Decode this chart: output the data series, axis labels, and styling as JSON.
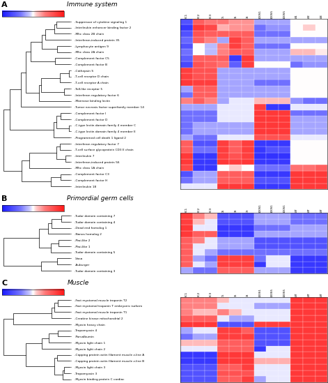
{
  "col_labels_A": [
    "BC1",
    "BC2",
    "BC3",
    "C5",
    "C6",
    "C8",
    "100S1",
    "100S5",
    "100S5",
    "W1",
    "W2",
    "W3"
  ],
  "col_labels_B": [
    "BC1",
    "BC2",
    "BC3",
    "C6",
    "C8",
    "C9",
    "100S1",
    "100S1",
    "100S1",
    "WT",
    "WT",
    "WT"
  ],
  "col_labels_C": [
    "BC1",
    "BC2",
    "BC3",
    "C5",
    "C6",
    "C8",
    "100S1",
    "100S5",
    "100S5",
    "WT",
    "WT",
    "WT"
  ],
  "title_A": "Immune system",
  "title_B": "Primordial germ cells",
  "title_C": "Muscle",
  "label_A": "A",
  "label_B": "B",
  "label_C": "C",
  "scale_A": [
    0.0,
    4.0,
    8.0
  ],
  "scale_B": [
    0.0,
    2.5,
    5.0
  ],
  "scale_C": [
    0.0,
    1.5,
    3.0
  ],
  "genes_A": [
    "Mhc class 1A chain",
    "Interleukin enhancer binding factor 2",
    "Mhc class 2B chain",
    "Suppressor of cytokine signaling 1",
    "Complement factor B",
    "Complement factor C5",
    "Mhc class 2A chain",
    "Lymphocyte antigen 9",
    "Interferon-induced protein 35",
    "Mannose binding lectin",
    "Interferon regulatory factor 6",
    "Toll-like receptor 5",
    "T-cell surface glycoprotein CD3 E chain",
    "Interferon regulatory factor 7",
    "Interferon-induced protein 56",
    "Interleukin 7",
    "Complement factor D",
    "C-type lectin domain family 4 member E",
    "C-type lectin domain family 4 member C",
    "Complement factor I",
    "Tumor necrosis factor superfamily member 14",
    "T-cell receptor D chain",
    "Cathepsin S",
    "T-cell receptor A chain",
    "Programmed cell death 1 ligand 2",
    "Interleukin 18",
    "Complement factor H",
    "Complement factor C3"
  ],
  "genes_B": [
    "Dead end homolog 1",
    "Nanos homolog 2",
    "Tudor domain containing 4",
    "Tudor domain containing 7",
    "Tudor domain containing 5",
    "Piwi-like 1",
    "Piwi-like 2",
    "Auburger",
    "Vasa",
    "Tudor domain containing 3"
  ],
  "genes_C": [
    "Capping protein actin filament muscle z-line B",
    "Capping protein actin filament muscle z-line A",
    "Tropomyosin 3",
    "Myosin light chain 3",
    "Myosin binding protein C cardiac",
    "Parvalbumin",
    "Tropomyosin 4",
    "Myosin light chain 2",
    "Fast myotomal troponin T embryonic isoform",
    "Myosin light chain 1",
    "Fast myotomal muscle troponin T2",
    "Fast myotomal muscle troponin T1",
    "Creatine kinase mitochondrial 2",
    "Myosin heavy chain"
  ],
  "heatmap_A": [
    [
      0.85,
      0.1,
      0.1,
      0.5,
      0.55,
      0.5,
      0.28,
      0.28,
      0.28,
      0.72,
      0.72,
      0.78
    ],
    [
      0.1,
      0.9,
      0.85,
      0.6,
      0.65,
      0.65,
      0.28,
      0.35,
      0.35,
      0.5,
      0.55,
      0.5
    ],
    [
      0.18,
      0.82,
      0.78,
      0.78,
      0.78,
      0.78,
      0.28,
      0.28,
      0.28,
      0.5,
      0.5,
      0.5
    ],
    [
      0.18,
      0.78,
      0.7,
      0.7,
      0.65,
      0.65,
      0.38,
      0.38,
      0.38,
      0.5,
      0.5,
      0.5
    ],
    [
      0.15,
      0.82,
      0.78,
      0.72,
      0.22,
      0.88,
      0.5,
      0.5,
      0.5,
      0.28,
      0.35,
      0.35
    ],
    [
      0.22,
      0.78,
      0.78,
      0.78,
      0.1,
      0.9,
      0.38,
      0.38,
      0.38,
      0.38,
      0.38,
      0.38
    ],
    [
      0.28,
      0.5,
      0.42,
      0.68,
      0.78,
      0.78,
      0.38,
      0.38,
      0.38,
      0.58,
      0.58,
      0.52
    ],
    [
      0.18,
      0.5,
      0.42,
      0.68,
      0.88,
      0.78,
      0.28,
      0.28,
      0.28,
      0.5,
      0.5,
      0.5
    ],
    [
      0.25,
      0.78,
      0.68,
      0.38,
      0.88,
      0.78,
      0.38,
      0.38,
      0.38,
      0.38,
      0.38,
      0.38
    ],
    [
      0.68,
      0.78,
      0.68,
      0.38,
      0.48,
      0.48,
      0.58,
      0.58,
      0.58,
      0.35,
      0.28,
      0.28
    ],
    [
      0.28,
      0.78,
      0.78,
      0.38,
      0.38,
      0.38,
      0.38,
      0.38,
      0.38,
      0.5,
      0.5,
      0.5
    ],
    [
      0.38,
      0.78,
      0.78,
      0.38,
      0.38,
      0.38,
      0.38,
      0.38,
      0.38,
      0.5,
      0.5,
      0.5
    ],
    [
      0.78,
      0.28,
      0.28,
      0.88,
      0.78,
      0.88,
      0.1,
      0.18,
      0.18,
      0.5,
      0.5,
      0.5
    ],
    [
      0.78,
      0.18,
      0.18,
      0.88,
      0.78,
      0.88,
      0.1,
      0.1,
      0.1,
      0.5,
      0.5,
      0.5
    ],
    [
      0.9,
      0.1,
      0.1,
      0.9,
      0.88,
      0.9,
      0.1,
      0.1,
      0.1,
      0.5,
      0.5,
      0.5
    ],
    [
      0.9,
      0.1,
      0.1,
      0.88,
      0.82,
      0.88,
      0.08,
      0.08,
      0.08,
      0.5,
      0.5,
      0.5
    ],
    [
      0.28,
      0.28,
      0.28,
      0.48,
      0.48,
      0.48,
      0.9,
      0.9,
      0.9,
      0.38,
      0.38,
      0.38
    ],
    [
      0.28,
      0.38,
      0.38,
      0.38,
      0.38,
      0.38,
      0.9,
      0.9,
      0.9,
      0.38,
      0.38,
      0.38
    ],
    [
      0.28,
      0.38,
      0.38,
      0.38,
      0.38,
      0.38,
      0.9,
      0.9,
      0.9,
      0.38,
      0.38,
      0.38
    ],
    [
      0.28,
      0.28,
      0.28,
      0.48,
      0.48,
      0.48,
      0.9,
      0.9,
      0.9,
      0.28,
      0.28,
      0.28
    ],
    [
      0.38,
      0.38,
      0.38,
      0.48,
      0.48,
      0.48,
      0.88,
      0.1,
      0.1,
      0.48,
      0.48,
      0.48
    ],
    [
      0.88,
      0.82,
      0.82,
      0.38,
      0.38,
      0.38,
      0.38,
      0.38,
      0.38,
      0.5,
      0.5,
      0.5
    ],
    [
      0.88,
      0.82,
      0.82,
      0.38,
      0.38,
      0.38,
      0.38,
      0.38,
      0.38,
      0.5,
      0.5,
      0.5
    ],
    [
      0.9,
      0.88,
      0.88,
      0.38,
      0.38,
      0.38,
      0.28,
      0.28,
      0.28,
      0.5,
      0.5,
      0.5
    ],
    [
      0.38,
      0.28,
      0.28,
      0.48,
      0.48,
      0.48,
      0.82,
      0.82,
      0.82,
      0.48,
      0.48,
      0.48
    ],
    [
      0.48,
      0.48,
      0.48,
      0.9,
      0.9,
      0.9,
      0.1,
      0.1,
      0.1,
      0.9,
      0.9,
      0.9
    ],
    [
      0.28,
      0.38,
      0.38,
      0.78,
      0.78,
      0.78,
      0.18,
      0.18,
      0.18,
      0.9,
      0.9,
      0.9
    ],
    [
      0.18,
      0.38,
      0.38,
      0.78,
      0.78,
      0.78,
      0.1,
      0.1,
      0.1,
      0.9,
      0.9,
      0.9
    ]
  ],
  "heatmap_B": [
    [
      0.9,
      0.48,
      0.48,
      0.1,
      0.1,
      0.1,
      0.28,
      0.28,
      0.28,
      0.38,
      0.38,
      0.38
    ],
    [
      0.9,
      0.78,
      0.78,
      0.1,
      0.1,
      0.1,
      0.38,
      0.38,
      0.38,
      0.38,
      0.38,
      0.38
    ],
    [
      0.88,
      0.58,
      0.48,
      0.18,
      0.18,
      0.18,
      0.38,
      0.38,
      0.38,
      0.28,
      0.28,
      0.28
    ],
    [
      0.88,
      0.68,
      0.58,
      0.18,
      0.18,
      0.18,
      0.38,
      0.38,
      0.38,
      0.28,
      0.28,
      0.28
    ],
    [
      0.78,
      0.48,
      0.38,
      0.28,
      0.28,
      0.28,
      0.28,
      0.28,
      0.28,
      0.28,
      0.28,
      0.28
    ],
    [
      0.78,
      0.48,
      0.48,
      0.38,
      0.38,
      0.38,
      0.18,
      0.18,
      0.18,
      0.18,
      0.18,
      0.18
    ],
    [
      0.78,
      0.68,
      0.48,
      0.38,
      0.38,
      0.38,
      0.18,
      0.18,
      0.18,
      0.18,
      0.18,
      0.18
    ],
    [
      0.78,
      0.48,
      0.38,
      0.88,
      0.88,
      0.88,
      0.1,
      0.48,
      0.48,
      0.1,
      0.1,
      0.1
    ],
    [
      0.78,
      0.38,
      0.28,
      0.88,
      0.88,
      0.88,
      0.28,
      0.48,
      0.48,
      0.1,
      0.1,
      0.1
    ],
    [
      0.38,
      0.28,
      0.28,
      0.78,
      0.78,
      0.78,
      0.38,
      0.38,
      0.38,
      0.1,
      0.1,
      0.1
    ]
  ],
  "heatmap_C": [
    [
      0.1,
      0.1,
      0.1,
      0.9,
      0.9,
      0.9,
      0.6,
      0.6,
      0.6,
      0.9,
      0.9,
      0.9
    ],
    [
      0.1,
      0.1,
      0.1,
      0.9,
      0.9,
      0.9,
      0.48,
      0.48,
      0.48,
      0.9,
      0.9,
      0.9
    ],
    [
      0.18,
      0.18,
      0.18,
      0.82,
      0.82,
      0.82,
      0.48,
      0.48,
      0.48,
      0.9,
      0.9,
      0.9
    ],
    [
      0.18,
      0.18,
      0.18,
      0.78,
      0.78,
      0.88,
      0.48,
      0.48,
      0.48,
      0.9,
      0.9,
      0.9
    ],
    [
      0.18,
      0.18,
      0.18,
      0.78,
      0.78,
      0.88,
      0.38,
      0.48,
      0.48,
      0.9,
      0.9,
      0.9
    ],
    [
      0.28,
      0.38,
      0.38,
      0.88,
      0.88,
      0.88,
      0.18,
      0.18,
      0.18,
      0.9,
      0.9,
      0.9
    ],
    [
      0.38,
      0.48,
      0.48,
      0.88,
      0.88,
      0.78,
      0.18,
      0.18,
      0.18,
      0.9,
      0.9,
      0.9
    ],
    [
      0.48,
      0.48,
      0.48,
      0.78,
      0.78,
      0.78,
      0.1,
      0.48,
      0.48,
      0.9,
      0.9,
      0.9
    ],
    [
      0.68,
      0.68,
      0.68,
      0.48,
      0.48,
      0.48,
      0.38,
      0.38,
      0.38,
      0.9,
      0.9,
      0.9
    ],
    [
      0.58,
      0.58,
      0.58,
      0.78,
      0.78,
      0.78,
      0.18,
      0.18,
      0.18,
      0.9,
      0.9,
      0.9
    ],
    [
      0.68,
      0.68,
      0.68,
      0.58,
      0.48,
      0.48,
      0.48,
      0.48,
      0.48,
      0.9,
      0.9,
      0.9
    ],
    [
      0.68,
      0.58,
      0.58,
      0.68,
      0.58,
      0.48,
      0.48,
      0.48,
      0.48,
      0.9,
      0.9,
      0.9
    ],
    [
      0.78,
      0.78,
      0.78,
      0.48,
      0.38,
      0.38,
      0.48,
      0.48,
      0.48,
      0.9,
      0.9,
      0.9
    ],
    [
      0.9,
      0.9,
      0.9,
      0.18,
      0.18,
      0.18,
      0.88,
      0.88,
      0.88,
      0.9,
      0.9,
      0.9
    ]
  ]
}
